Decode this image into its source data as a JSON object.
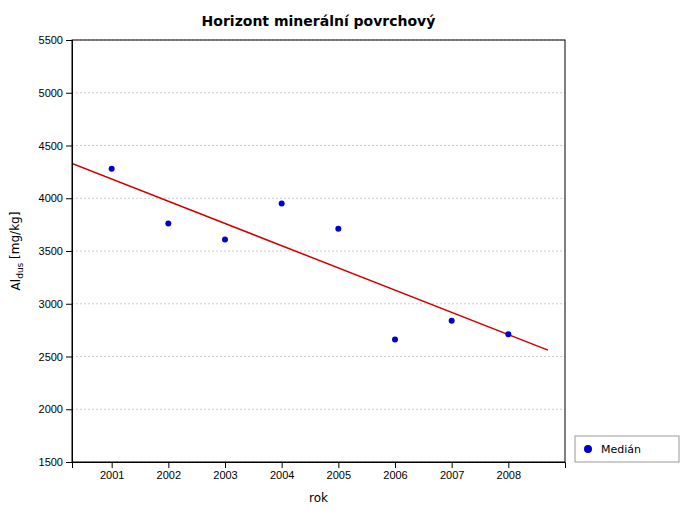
{
  "chart_data": {
    "type": "scatter",
    "title": "Horizont minerální povrchový",
    "x_label": "rok",
    "y_label": "Al",
    "y_label_sub": "dus",
    "y_label_unit": " [mg/kg]",
    "series": [
      {
        "name": "Medián",
        "type": "scatter",
        "marker": "circle",
        "color": "#0000cc",
        "x": [
          2001,
          2002,
          2003,
          2004,
          2005,
          2006,
          2007,
          2008
        ],
        "values": [
          4280,
          3760,
          3610,
          3950,
          3710,
          2660,
          2840,
          2710
        ]
      },
      {
        "type": "line",
        "line_style": "solid",
        "color": "#cc0000",
        "x": [
          2000.3,
          2008.7
        ],
        "values": [
          4330,
          2560
        ]
      }
    ],
    "xlim": [
      2000.3,
      2009.0
    ],
    "ylim": [
      1500,
      5500
    ],
    "xticks": [
      2001,
      2002,
      2003,
      2004,
      2005,
      2006,
      2007,
      2008
    ],
    "yticks": [
      1500,
      2000,
      2500,
      3000,
      3500,
      4000,
      4500,
      5000,
      5500
    ],
    "grid": "y",
    "legend": "lower right"
  }
}
